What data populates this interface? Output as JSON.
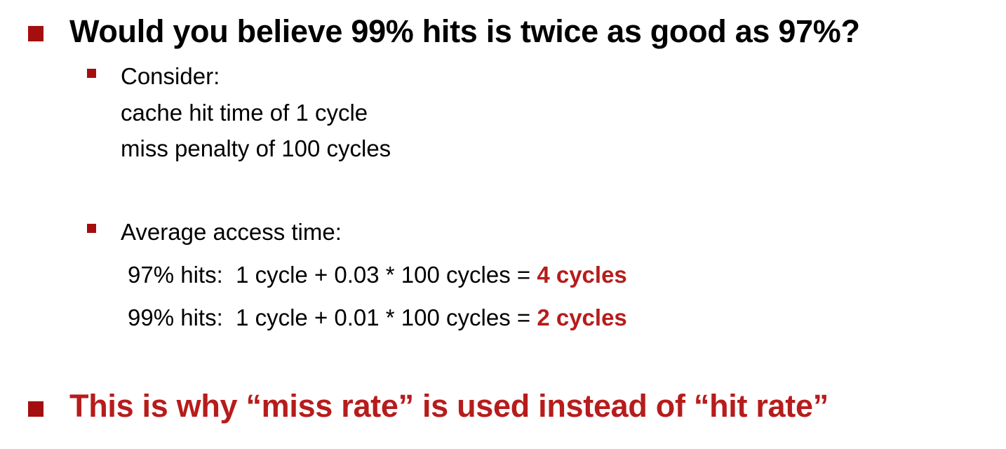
{
  "slide": {
    "heading_main": "Would you believe 99% hits is twice as good as 97%?",
    "consider": {
      "label": "Consider:",
      "lines": [
        "cache hit time of 1 cycle",
        "miss penalty of 100 cycles"
      ]
    },
    "average": {
      "label": "Average access time:",
      "rows": [
        {
          "expr": "97% hits:  1 cycle + 0.03 * 100 cycles = ",
          "result": "4 cycles"
        },
        {
          "expr": "99% hits:  1 cycle + 0.01 * 100 cycles = ",
          "result": "2 cycles"
        }
      ]
    },
    "conclusion": "This is why “miss rate” is used instead of “hit rate”"
  },
  "colors": {
    "accent": "#a50e0e",
    "highlight_text": "#b71c1c"
  }
}
